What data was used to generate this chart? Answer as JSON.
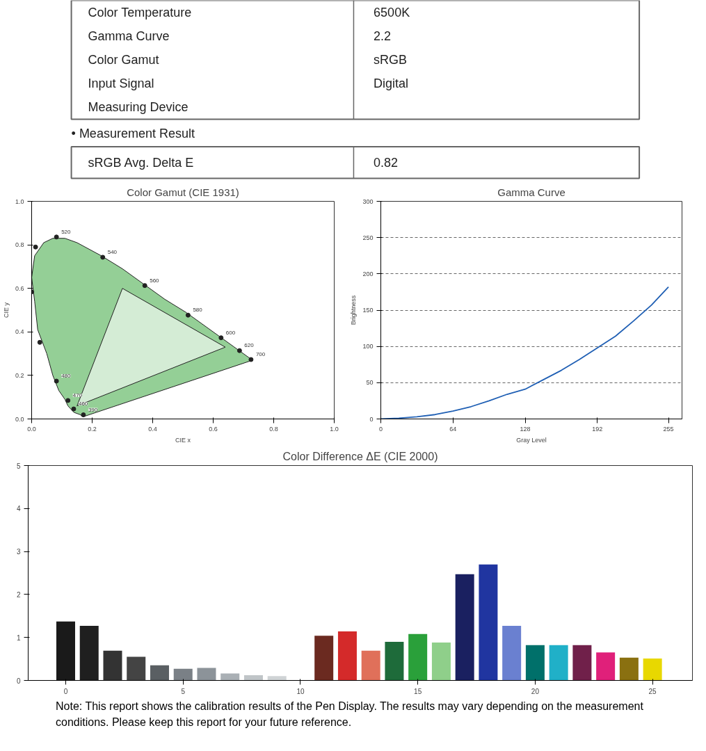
{
  "chart_data": [
    {
      "type": "other",
      "annotations": [
        "Color Temperature",
        "6500K",
        "Gamma Curve",
        "2.2",
        "Color Gamut",
        "sRGB",
        "Input Signal",
        "Digital",
        "Measuring Device"
      ]
    },
    {
      "type": "other",
      "title": "• Measurement Result",
      "annotations": [
        "sRGB Avg. Delta E",
        "0.82"
      ]
    },
    {
      "type": "line",
      "title": "Color Gamut (CIE 1931)",
      "xlabel": "CIE x",
      "ylabel": "CIE y",
      "xlim": [
        0,
        1
      ],
      "ylim": [
        0,
        1
      ],
      "xticks": [
        {
          "value": 0,
          "label": "0.0"
        },
        0.2,
        0.4,
        0.6,
        0.8,
        {
          "value": 1,
          "label": "1.0"
        }
      ],
      "yticks": [
        {
          "value": 0,
          "label": "0.0"
        },
        0.2,
        0.4,
        0.6,
        0.8,
        {
          "value": 1,
          "label": "1.0"
        }
      ],
      "grid": false,
      "annotations": [
        {
          "text": "520",
          "x": 0.082,
          "y": 0.836
        },
        {
          "text": "480",
          "x": 0.082,
          "y": 0.174
        },
        {
          "text": "470",
          "x": 0.12,
          "y": 0.085
        },
        {
          "text": "460",
          "x": 0.139,
          "y": 0.046
        },
        {
          "text": "390",
          "x": 0.171,
          "y": 0.019
        },
        {
          "text": "540",
          "x": 0.235,
          "y": 0.743
        },
        {
          "text": "560",
          "x": 0.374,
          "y": 0.613
        },
        {
          "text": "580",
          "x": 0.517,
          "y": 0.477
        },
        {
          "text": "600",
          "x": 0.626,
          "y": 0.373
        },
        {
          "text": "620",
          "x": 0.687,
          "y": 0.314
        },
        {
          "text": "700",
          "x": 0.725,
          "y": 0.273
        }
      ],
      "series": [
        {
          "type": "area",
          "color": "#4caf50",
          "x": [
            0.17,
            0.17,
            0.16,
            0.14,
            0.12,
            0.11,
            0.09,
            0.07,
            0.05,
            0.02,
            0.01,
            0.0,
            0.01,
            0.04,
            0.07,
            0.11,
            0.15,
            0.23,
            0.3,
            0.37,
            0.44,
            0.51,
            0.58,
            0.63,
            0.67,
            0.69,
            0.72,
            0.73,
            0.17
          ],
          "values": [
            0.01,
            0.01,
            0.02,
            0.03,
            0.06,
            0.09,
            0.13,
            0.2,
            0.3,
            0.41,
            0.54,
            0.65,
            0.75,
            0.81,
            0.83,
            0.83,
            0.81,
            0.75,
            0.69,
            0.62,
            0.55,
            0.49,
            0.42,
            0.37,
            0.33,
            0.31,
            0.28,
            0.27,
            0.01
          ]
        },
        {
          "type": "area",
          "color": "#ffffff",
          "x": [
            0.64,
            0.3,
            0.15,
            0.64
          ],
          "values": [
            0.33,
            0.6,
            0.06,
            0.33
          ]
        },
        {
          "type": "scatter",
          "color": "#222222",
          "marker": "circle",
          "x": [
            0.082,
            0.013,
            0.0,
            0.027,
            0.082,
            0.12,
            0.139,
            0.171,
            0.235,
            0.374,
            0.517,
            0.626,
            0.687,
            0.725
          ],
          "values": [
            0.836,
            0.79,
            0.584,
            0.352,
            0.174,
            0.085,
            0.046,
            0.019,
            0.743,
            0.613,
            0.477,
            0.373,
            0.314,
            0.273
          ]
        }
      ]
    },
    {
      "type": "line",
      "title": "Gamma Curve",
      "xlabel": "Gray Level",
      "ylabel": "Brightness",
      "xlim": [
        0,
        267
      ],
      "ylim": [
        0,
        300
      ],
      "xticks": [
        0,
        64,
        128,
        192,
        255
      ],
      "yticks": [
        0,
        50,
        100,
        150,
        200,
        250,
        300
      ],
      "grid": "y",
      "series": [
        {
          "color": "#1f5fb4",
          "x": [
            0,
            16,
            32,
            48,
            64,
            80,
            96,
            112,
            128,
            144,
            160,
            176,
            192,
            208,
            224,
            240,
            255
          ],
          "values": [
            0,
            1,
            3,
            6,
            11,
            17,
            25,
            34,
            41,
            54,
            67,
            82,
            98,
            114,
            135,
            157,
            182
          ]
        }
      ]
    },
    {
      "type": "bar",
      "title": "Color Difference ΔE (CIE 2000)",
      "xlim": [
        -1.6,
        26.7
      ],
      "ylim": [
        0,
        5
      ],
      "xticks": [
        0,
        5,
        10,
        15,
        20,
        25
      ],
      "yticks": [
        0,
        1,
        2,
        3,
        4,
        5
      ],
      "grid": false,
      "x": [
        0,
        1,
        2,
        3,
        4,
        5,
        6,
        7,
        8,
        9,
        10,
        11,
        12,
        13,
        14,
        15,
        16,
        17,
        18,
        19,
        20,
        21,
        22,
        23,
        24,
        25
      ],
      "values": [
        1.37,
        1.27,
        0.69,
        0.55,
        0.35,
        0.27,
        0.29,
        0.16,
        0.12,
        0.1,
        null,
        1.04,
        1.14,
        0.69,
        0.9,
        1.08,
        0.88,
        2.47,
        2.7,
        1.27,
        0.82,
        0.82,
        0.82,
        0.65,
        0.53,
        0.51
      ],
      "colors": [
        "#1a1a1a",
        "#1f1f1f",
        "#333333",
        "#444444",
        "#5a5f63",
        "#7a8086",
        "#8c9399",
        "#aab0b5",
        "#c0c5c8",
        "#d0d4d6",
        "#ffffff",
        "#6b2a20",
        "#d42a2a",
        "#e0705a",
        "#1e6b3a",
        "#2aa03a",
        "#8fcf8a",
        "#1a2060",
        "#2035a0",
        "#6a80d0",
        "#00706a",
        "#20b0c8",
        "#70204a",
        "#e0207a",
        "#8a7010",
        "#e8d800"
      ],
      "annotations": [
        "Note: This report shows the calibration results of the Pen Display. The results may vary depending on the measurement conditions. Please keep this report for your future reference."
      ]
    }
  ]
}
